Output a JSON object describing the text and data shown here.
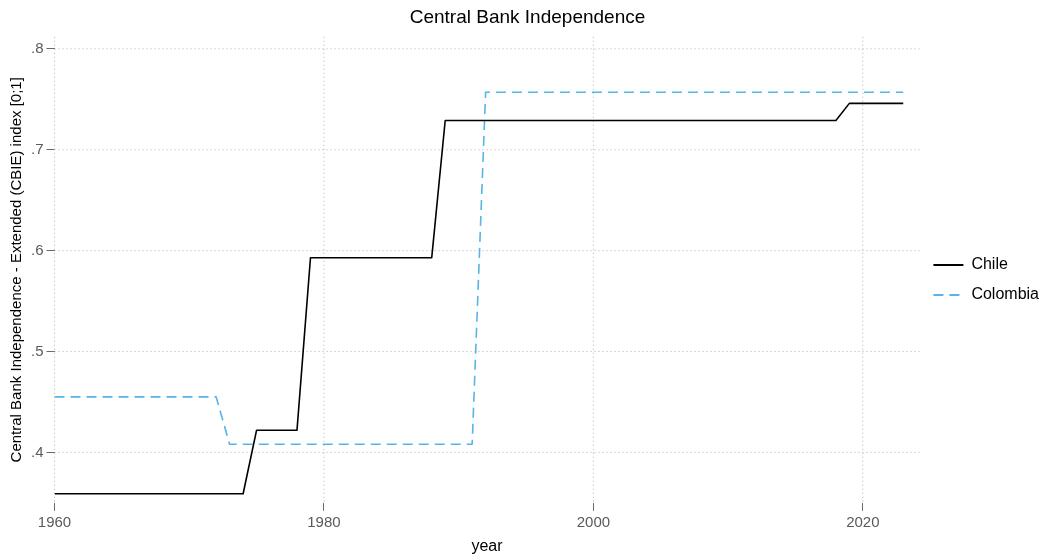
{
  "chart_data": {
    "type": "line",
    "title": "Central Bank Independence",
    "xlabel": "year",
    "ylabel": "Central Bank Independence - Extended (CBIE) index [0;1]",
    "xlim": [
      1960,
      2024.2
    ],
    "xticks": [
      1960,
      1980,
      2000,
      2020
    ],
    "ylim": [
      0.35,
      0.812
    ],
    "yticks": [
      {
        "value": 0.4,
        "label": ".4"
      },
      {
        "value": 0.5,
        "label": ".5"
      },
      {
        "value": 0.6,
        "label": ".6"
      },
      {
        "value": 0.7,
        "label": ".7"
      },
      {
        "value": 0.8,
        "label": ".8"
      }
    ],
    "grid": true,
    "legend": "right",
    "marker": "none",
    "series": [
      {
        "name": "Chile",
        "color": "#000000",
        "line_style": "solid",
        "x": [
          1960,
          1974,
          1975,
          1978,
          1979,
          1988,
          1989,
          2018,
          2019,
          2023
        ],
        "values": [
          0.359,
          0.359,
          0.422,
          0.422,
          0.593,
          0.593,
          0.729,
          0.729,
          0.746,
          0.746
        ]
      },
      {
        "name": "Colombia",
        "color": "#56b4e9",
        "line_style": "dashed",
        "x": [
          1960,
          1972,
          1973,
          1991,
          1992,
          2023
        ],
        "values": [
          0.455,
          0.455,
          0.408,
          0.408,
          0.757,
          0.757
        ]
      }
    ]
  }
}
